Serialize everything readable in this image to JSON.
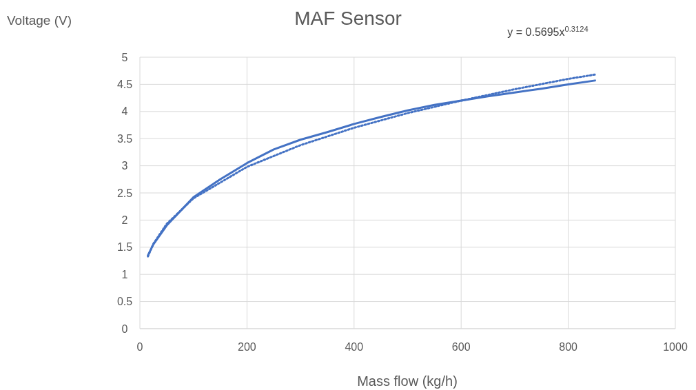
{
  "chart_data": {
    "type": "line",
    "title": "MAF Sensor",
    "xlabel": "Mass flow (kg/h)",
    "ylabel": "Voltage (V)",
    "annotations": [
      "y = 0.5695x$^{0.3124}$"
    ],
    "x": [
      15,
      25,
      50,
      100,
      150,
      200,
      250,
      300,
      350,
      400,
      450,
      500,
      550,
      600,
      650,
      700,
      750,
      800,
      850
    ],
    "series": [
      {
        "color": "#4472c4",
        "values": [
          1.35,
          1.55,
          1.9,
          2.42,
          2.75,
          3.05,
          3.3,
          3.48,
          3.62,
          3.77,
          3.9,
          4.02,
          4.12,
          4.2,
          4.28,
          4.35,
          4.42,
          4.5,
          4.57
        ]
      },
      {
        "type": "line",
        "line_style": "dotted",
        "color": "#4472c4",
        "x": [
          15,
          25,
          50,
          100,
          200,
          300,
          400,
          500,
          600,
          700,
          800,
          850
        ],
        "values": [
          1.33,
          1.56,
          1.93,
          2.4,
          2.98,
          3.38,
          3.7,
          3.97,
          4.2,
          4.41,
          4.6,
          4.68
        ]
      }
    ],
    "xlim": [
      0,
      1000
    ],
    "xticks": [
      0,
      200,
      400,
      600,
      800,
      1000
    ],
    "ylim": [
      0,
      5
    ],
    "yticks": [
      0,
      0.5,
      1,
      1.5,
      2,
      2.5,
      3,
      3.5,
      4,
      4.5,
      5
    ],
    "grid": true,
    "marker": "none",
    "line_style": "solid"
  }
}
